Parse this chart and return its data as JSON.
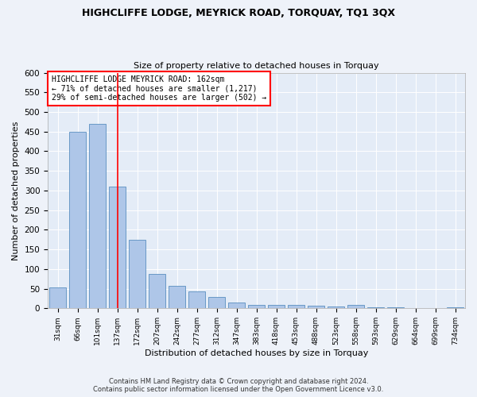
{
  "title1": "HIGHCLIFFE LODGE, MEYRICK ROAD, TORQUAY, TQ1 3QX",
  "title2": "Size of property relative to detached houses in Torquay",
  "xlabel": "Distribution of detached houses by size in Torquay",
  "ylabel": "Number of detached properties",
  "categories": [
    "31sqm",
    "66sqm",
    "101sqm",
    "137sqm",
    "172sqm",
    "207sqm",
    "242sqm",
    "277sqm",
    "312sqm",
    "347sqm",
    "383sqm",
    "418sqm",
    "453sqm",
    "488sqm",
    "523sqm",
    "558sqm",
    "593sqm",
    "629sqm",
    "664sqm",
    "699sqm",
    "734sqm"
  ],
  "values": [
    53,
    450,
    470,
    310,
    175,
    88,
    58,
    43,
    30,
    15,
    9,
    8,
    8,
    6,
    5,
    8,
    2,
    2,
    1,
    1,
    3
  ],
  "bar_color": "#aec6e8",
  "bar_edge_color": "#5a8fc0",
  "annotation_line1": "HIGHCLIFFE LODGE MEYRICK ROAD: 162sqm",
  "annotation_line2": "← 71% of detached houses are smaller (1,217)",
  "annotation_line3": "29% of semi-detached houses are larger (502) →",
  "footer_line1": "Contains HM Land Registry data © Crown copyright and database right 2024.",
  "footer_line2": "Contains public sector information licensed under the Open Government Licence v3.0.",
  "ylim": [
    0,
    600
  ],
  "yticks": [
    0,
    50,
    100,
    150,
    200,
    250,
    300,
    350,
    400,
    450,
    500,
    550,
    600
  ],
  "background_color": "#eef2f9",
  "plot_bg_color": "#e4ecf7"
}
